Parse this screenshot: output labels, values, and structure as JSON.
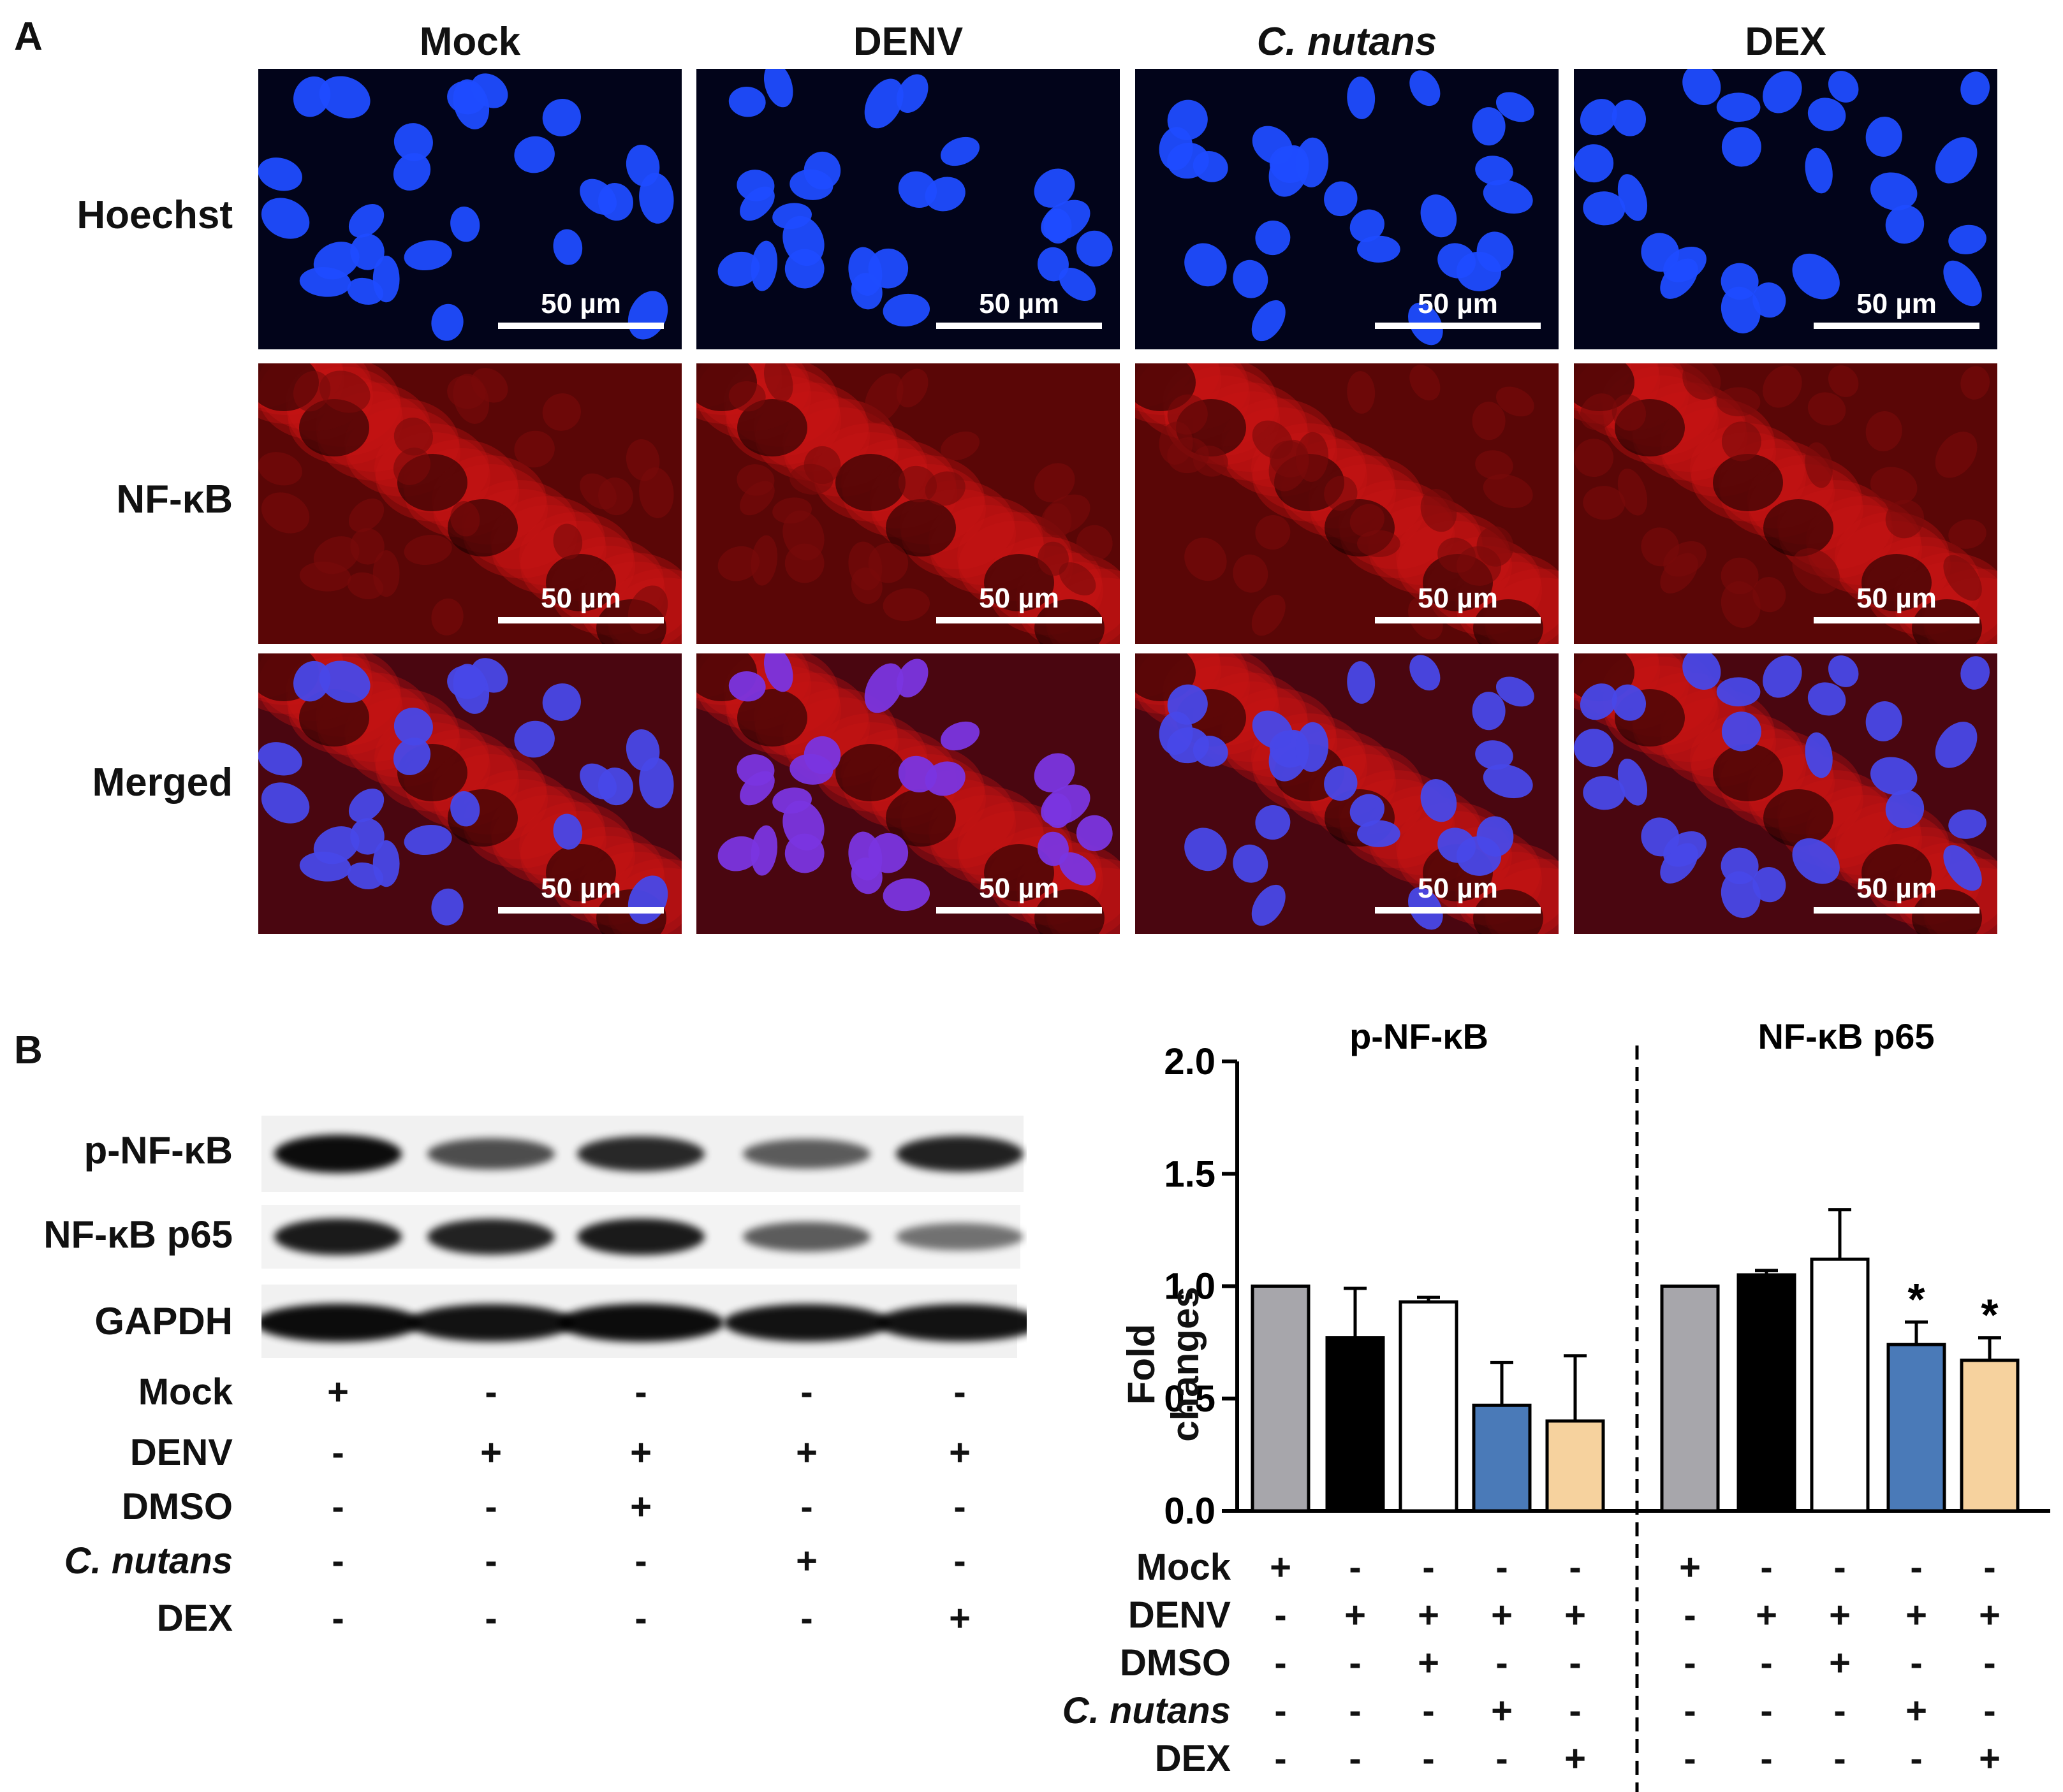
{
  "panel_a": {
    "label": "A",
    "columns": [
      "Mock",
      "DENV",
      "C. nutans",
      "DEX"
    ],
    "rows": [
      "Hoechst",
      "NF-κB",
      "Merged"
    ],
    "scale_bar": "50 µm"
  },
  "panel_b": {
    "label": "B",
    "blot_rows": [
      "p-NF-κB",
      "NF-κB p65",
      "GAPDH"
    ],
    "treatment_rows": [
      {
        "name": "Mock",
        "signs": [
          "+",
          "-",
          "-",
          "-",
          "-"
        ]
      },
      {
        "name": "DENV",
        "signs": [
          "-",
          "+",
          "+",
          "+",
          "+"
        ]
      },
      {
        "name": "DMSO",
        "signs": [
          "-",
          "-",
          "+",
          "-",
          "-"
        ]
      },
      {
        "name": "C. nutans",
        "signs": [
          "-",
          "-",
          "-",
          "+",
          "-"
        ]
      },
      {
        "name": "DEX",
        "signs": [
          "-",
          "-",
          "-",
          "-",
          "+"
        ]
      }
    ]
  },
  "chart_data": {
    "type": "bar",
    "ylabel": "Fold changes",
    "ylim": [
      0,
      2.0
    ],
    "yticks": [
      "0.0",
      "0.5",
      "1.0",
      "1.5",
      "2.0"
    ],
    "groups": [
      {
        "name": "p-NF-κB",
        "values": [
          1.0,
          0.77,
          0.93,
          0.47,
          0.4
        ],
        "errors": [
          0,
          0.22,
          0.02,
          0.19,
          0.29
        ],
        "significant": [
          false,
          false,
          false,
          false,
          false
        ]
      },
      {
        "name": "NF-κB p65",
        "values": [
          1.0,
          1.05,
          1.12,
          0.74,
          0.67
        ],
        "errors": [
          0,
          0.02,
          0.22,
          0.1,
          0.1
        ],
        "significant": [
          false,
          false,
          false,
          true,
          true
        ]
      }
    ],
    "bar_colors": [
      "#a7a6ab",
      "#000000",
      "#ffffff",
      "#4a7ab8",
      "#f6d29e"
    ],
    "significance_marker": "*",
    "treatment_rows": [
      {
        "name": "Mock",
        "signs": [
          "+",
          "-",
          "-",
          "-",
          "-"
        ]
      },
      {
        "name": "DENV",
        "signs": [
          "-",
          "+",
          "+",
          "+",
          "+"
        ]
      },
      {
        "name": "DMSO",
        "signs": [
          "-",
          "-",
          "+",
          "-",
          "-"
        ]
      },
      {
        "name": "C. nutans",
        "signs": [
          "-",
          "-",
          "-",
          "+",
          "-"
        ]
      },
      {
        "name": "DEX",
        "signs": [
          "-",
          "-",
          "-",
          "-",
          "+"
        ]
      }
    ]
  }
}
